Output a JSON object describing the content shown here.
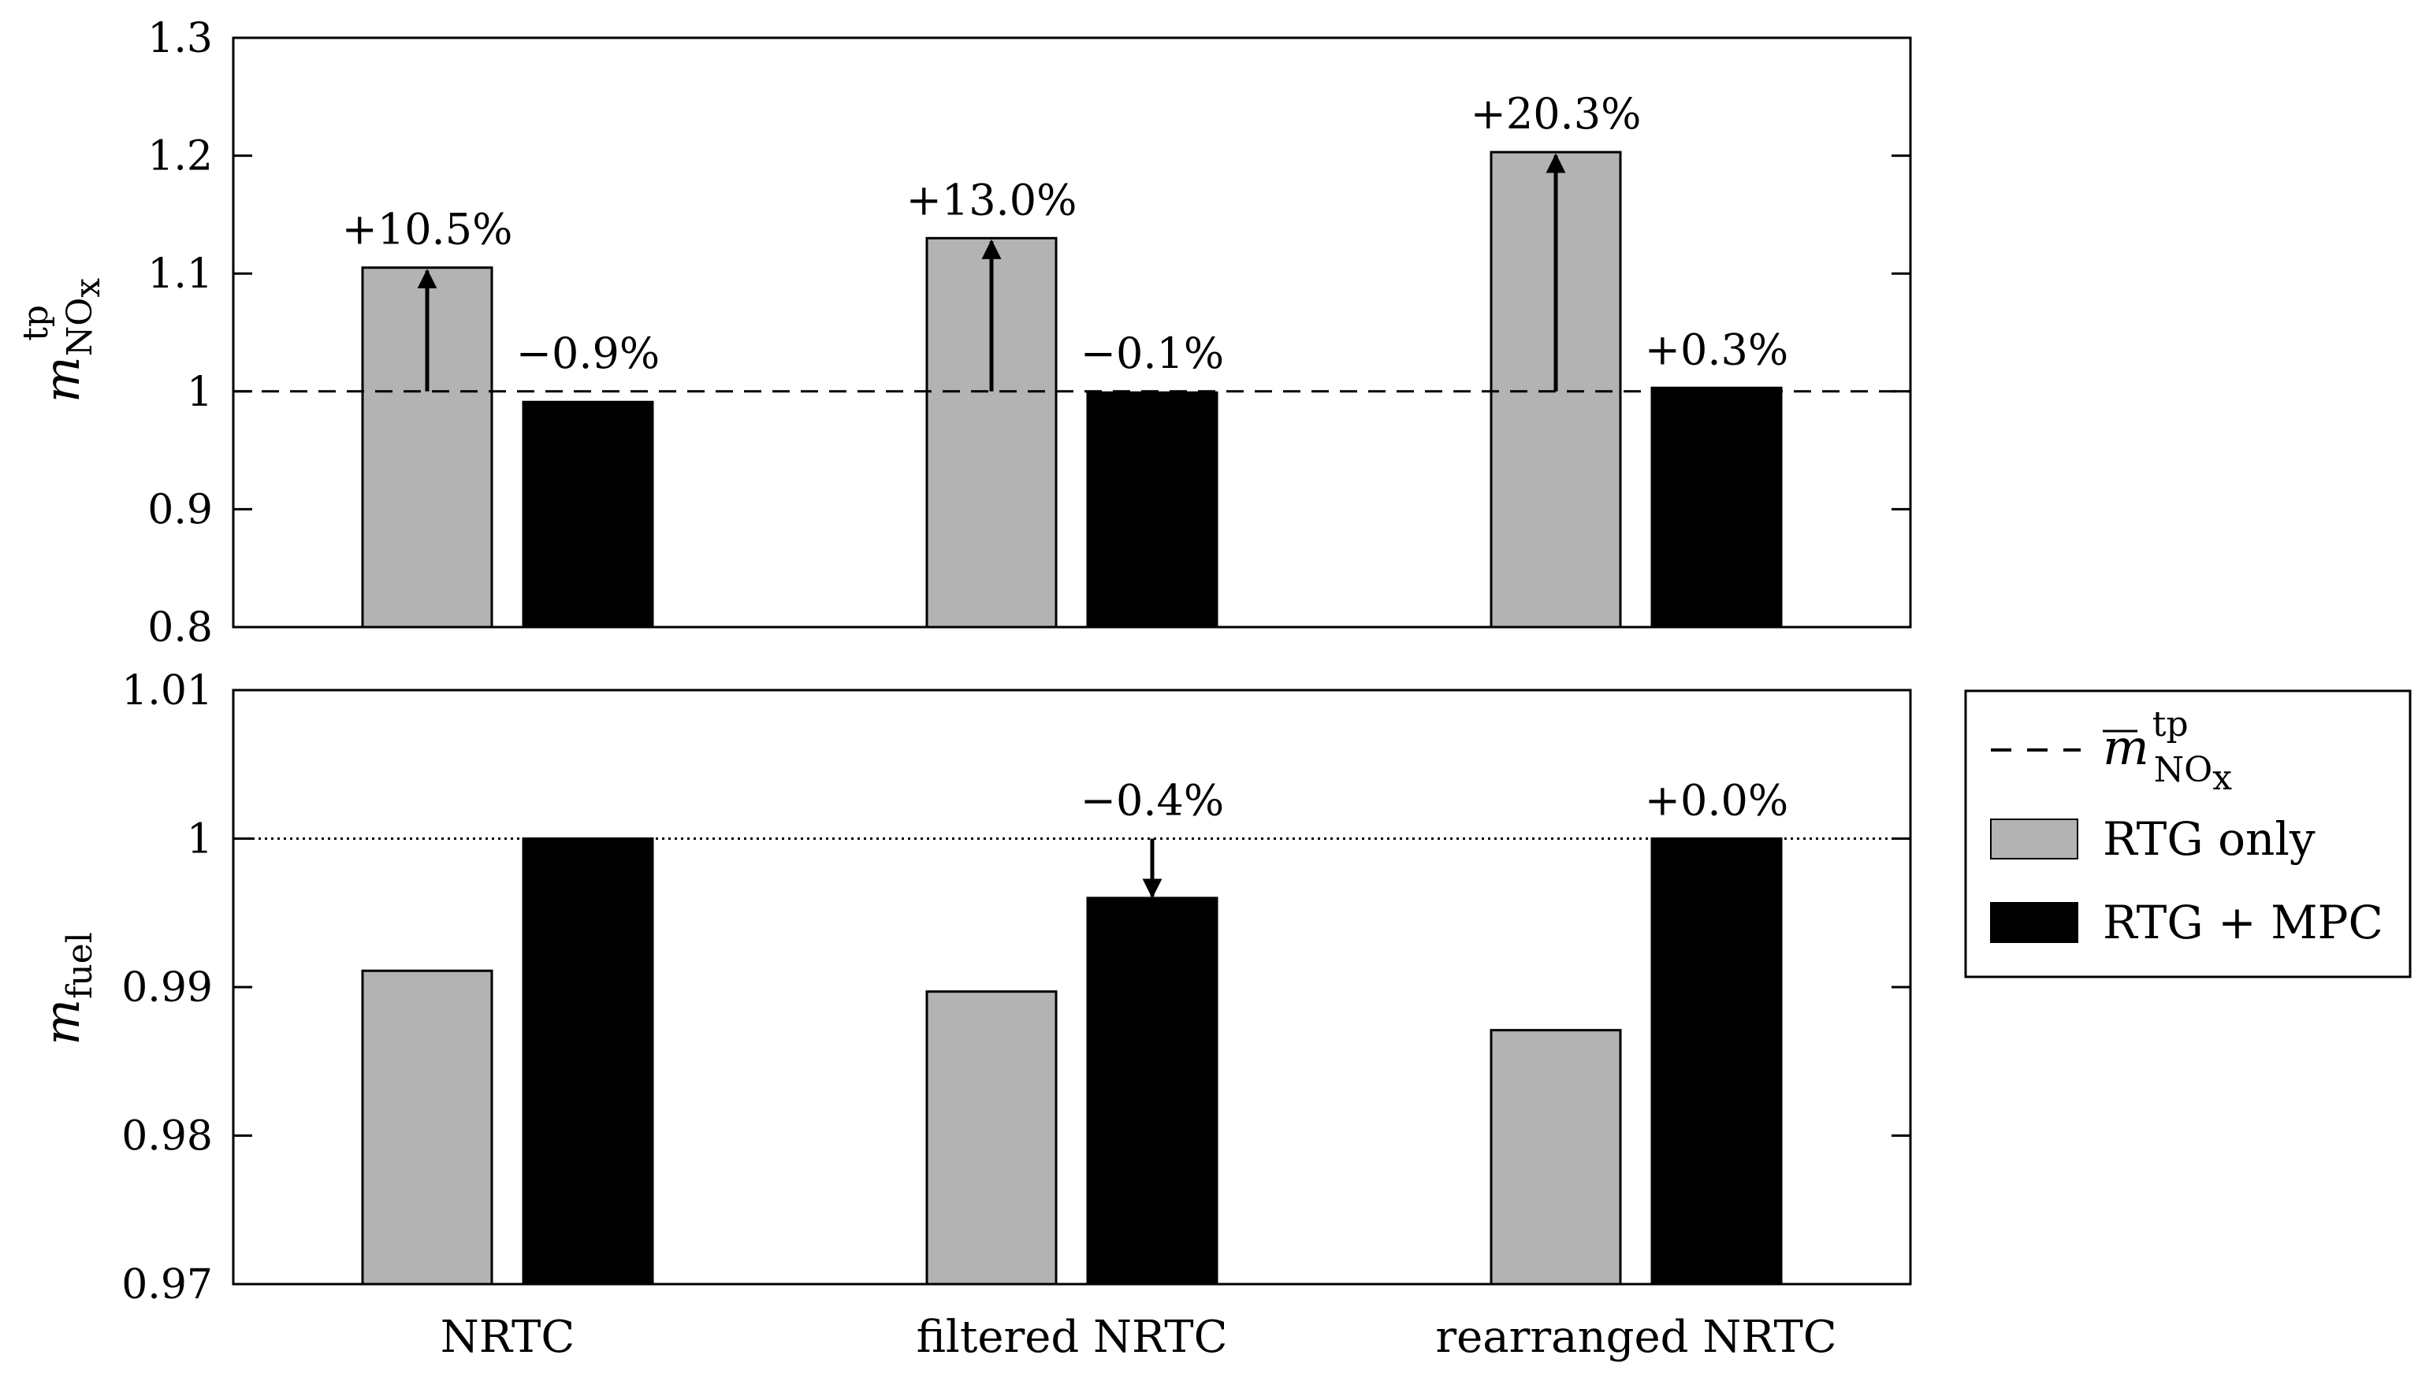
{
  "chart_data": [
    {
      "type": "bar",
      "panel": "top",
      "ylabel": {
        "main": "m",
        "sup": "tp",
        "sub": "NO",
        "sub2": "x"
      },
      "ylim": [
        0.8,
        1.3
      ],
      "yticks": [
        0.8,
        0.9,
        1,
        1.1,
        1.2,
        1.3
      ],
      "ytick_labels": [
        "0.8",
        "0.9",
        "1",
        "1.1",
        "1.2",
        "1.3"
      ],
      "reference_line": {
        "value": 1.0,
        "style": "dashed"
      },
      "categories": [
        "NRTC",
        "filtered NRTC",
        "rearranged NRTC"
      ],
      "series": [
        {
          "name": "RTG only",
          "color": "#b3b3b3",
          "values": [
            1.105,
            1.13,
            1.203
          ]
        },
        {
          "name": "RTG + MPC",
          "color": "#000000",
          "values": [
            0.991,
            0.999,
            1.003
          ]
        }
      ],
      "annotations": [
        {
          "category": 0,
          "series": 0,
          "text": "+10.5%",
          "arrow": "up"
        },
        {
          "category": 0,
          "series": 1,
          "text": "−0.9%",
          "arrow": "none"
        },
        {
          "category": 1,
          "series": 0,
          "text": "+13.0%",
          "arrow": "up"
        },
        {
          "category": 1,
          "series": 1,
          "text": "−0.1%",
          "arrow": "none"
        },
        {
          "category": 2,
          "series": 0,
          "text": "+20.3%",
          "arrow": "up"
        },
        {
          "category": 2,
          "series": 1,
          "text": "+0.3%",
          "arrow": "none"
        }
      ]
    },
    {
      "type": "bar",
      "panel": "bottom",
      "ylabel": {
        "main": "m",
        "sub": "fuel"
      },
      "ylim": [
        0.97,
        1.01
      ],
      "yticks": [
        0.97,
        0.98,
        0.99,
        1,
        1.01
      ],
      "ytick_labels": [
        "0.97",
        "0.98",
        "0.99",
        "1",
        "1.01"
      ],
      "reference_line": {
        "value": 1.0,
        "style": "dotted"
      },
      "categories": [
        "NRTC",
        "filtered NRTC",
        "rearranged NRTC"
      ],
      "category_labels": [
        "NRTC",
        "filtered NRTC",
        "rearranged NRTC"
      ],
      "series": [
        {
          "name": "RTG only",
          "color": "#b3b3b3",
          "values": [
            0.9911,
            0.9897,
            0.9871
          ]
        },
        {
          "name": "RTG + MPC",
          "color": "#000000",
          "values": [
            1.0,
            0.996,
            1.0
          ]
        }
      ],
      "annotations": [
        {
          "category": 1,
          "series": 1,
          "text": "−0.4%",
          "arrow": "down"
        },
        {
          "category": 2,
          "series": 1,
          "text": "+0.0%",
          "arrow": "none"
        }
      ]
    }
  ],
  "legend": {
    "placement": "right-middle",
    "items": [
      {
        "kind": "dashed-line",
        "label_main": "m",
        "label_sup": "tp",
        "label_sub": "NO",
        "label_sub2": "x",
        "overline": true
      },
      {
        "kind": "box",
        "label": "RTG only",
        "color": "#b3b3b3"
      },
      {
        "kind": "box",
        "label": "RTG + MPC",
        "color": "#000000"
      }
    ]
  }
}
